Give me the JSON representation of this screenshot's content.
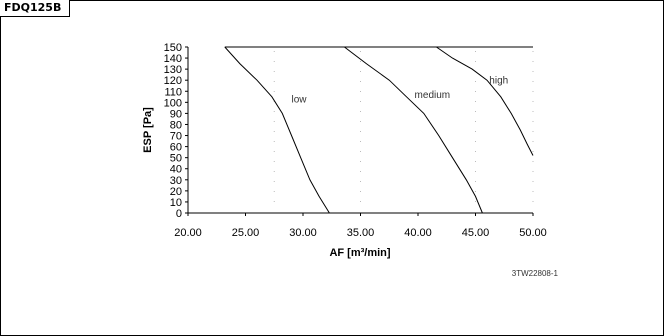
{
  "header": {
    "model": "FDQ125B"
  },
  "reference_code": "3TW22808-1",
  "chart_data": {
    "type": "line",
    "title": "",
    "xlabel": "AF [m³/min]",
    "ylabel": "ESP [Pa]",
    "xlim": [
      20,
      50
    ],
    "ylim": [
      0,
      150
    ],
    "x_ticks": [
      "20.00",
      "25.00",
      "30.00",
      "35.00",
      "40.00",
      "45.00",
      "50.00"
    ],
    "y_ticks": [
      0,
      10,
      20,
      30,
      40,
      50,
      60,
      70,
      80,
      90,
      100,
      110,
      120,
      130,
      140,
      150
    ],
    "series": [
      {
        "name": "low",
        "x": [
          23.2,
          24.5,
          26.0,
          27.3,
          28.2,
          29.0,
          29.8,
          30.6,
          31.4,
          32.3
        ],
        "y": [
          150,
          135,
          120,
          105,
          90,
          70,
          50,
          30,
          15,
          0
        ]
      },
      {
        "name": "medium",
        "x": [
          33.6,
          35.5,
          37.5,
          39.0,
          40.5,
          41.8,
          43.0,
          44.2,
          45.0,
          45.6
        ],
        "y": [
          150,
          135,
          120,
          105,
          90,
          70,
          50,
          30,
          15,
          0
        ]
      },
      {
        "name": "high",
        "x": [
          41.6,
          43.0,
          44.7,
          46.0,
          47.2,
          48.1,
          48.9,
          49.5,
          50.0
        ],
        "y": [
          150,
          140,
          130,
          120,
          105,
          90,
          75,
          62,
          52
        ]
      }
    ]
  }
}
